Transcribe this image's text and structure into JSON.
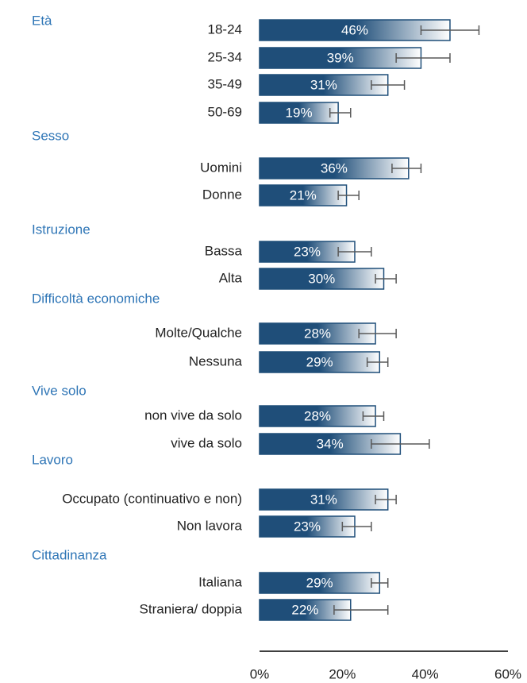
{
  "chart_data": {
    "type": "bar",
    "orientation": "horizontal",
    "color": "#1f4e79",
    "error_color": "#595959",
    "groups": [
      {
        "name": "Età",
        "categories": [
          "18-24",
          "25-34",
          "35-49",
          "50-69"
        ],
        "values": [
          46,
          39,
          31,
          19
        ],
        "value_labels": [
          "46%",
          "39%",
          "31%",
          "19%"
        ],
        "ci_low": [
          39,
          33,
          27,
          17
        ],
        "ci_high": [
          53,
          46,
          35,
          22
        ]
      },
      {
        "name": "Sesso",
        "categories": [
          "Uomini",
          "Donne"
        ],
        "values": [
          36,
          21
        ],
        "value_labels": [
          "36%",
          "21%"
        ],
        "ci_low": [
          32,
          19
        ],
        "ci_high": [
          39,
          24
        ]
      },
      {
        "name": "Istruzione",
        "categories": [
          "Bassa",
          "Alta"
        ],
        "values": [
          23,
          30
        ],
        "value_labels": [
          "23%",
          "30%"
        ],
        "ci_low": [
          19,
          28
        ],
        "ci_high": [
          27,
          33
        ]
      },
      {
        "name": "Difficoltà economiche",
        "categories": [
          "Molte/Qualche",
          "Nessuna"
        ],
        "values": [
          28,
          29
        ],
        "value_labels": [
          "28%",
          "29%"
        ],
        "ci_low": [
          24,
          26
        ],
        "ci_high": [
          33,
          31
        ]
      },
      {
        "name": "Vive solo",
        "categories": [
          "non vive da solo",
          "vive da solo"
        ],
        "values": [
          28,
          34
        ],
        "value_labels": [
          "28%",
          "34%"
        ],
        "ci_low": [
          25,
          27
        ],
        "ci_high": [
          30,
          41
        ]
      },
      {
        "name": "Lavoro",
        "categories": [
          "Occupato (continuativo e non)",
          "Non lavora"
        ],
        "values": [
          31,
          23
        ],
        "value_labels": [
          "31%",
          "23%"
        ],
        "ci_low": [
          28,
          20
        ],
        "ci_high": [
          33,
          27
        ]
      },
      {
        "name": "Cittadinanza",
        "categories": [
          "Italiana",
          "Straniera/ doppia"
        ],
        "values": [
          29,
          22
        ],
        "value_labels": [
          "29%",
          "22%"
        ],
        "ci_low": [
          27,
          18
        ],
        "ci_high": [
          31,
          31
        ]
      }
    ],
    "xlim": [
      0,
      60
    ],
    "xticks": [
      {
        "value": 0,
        "label": "0%"
      },
      {
        "value": 20,
        "label": "20%"
      },
      {
        "value": 40,
        "label": "40%"
      },
      {
        "value": 60,
        "label": "60%"
      }
    ],
    "grid": false
  }
}
